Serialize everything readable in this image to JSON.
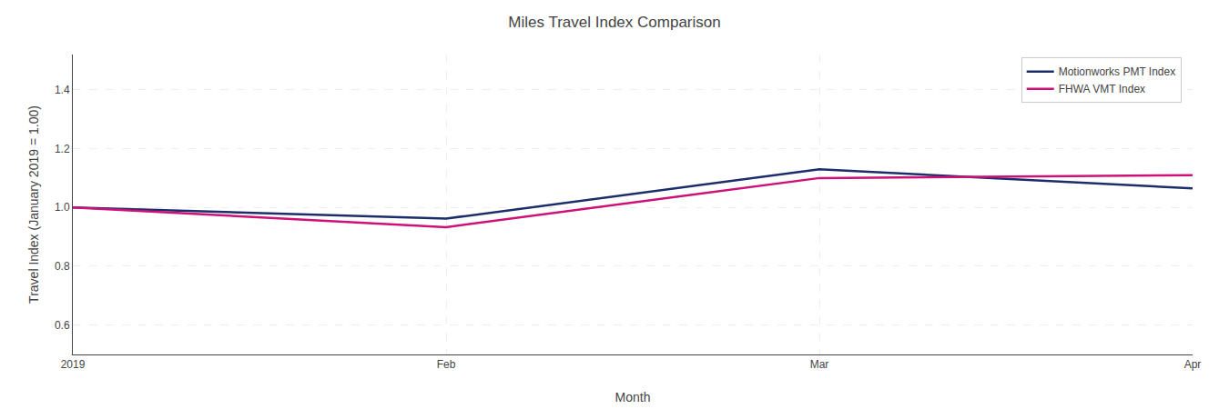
{
  "chart_data": {
    "type": "line",
    "title": "Miles Travel Index Comparison",
    "x_label": "Month",
    "y_label": "Travel Index (January 2019 = 1.00)",
    "categories": [
      "2019",
      "Feb",
      "Mar",
      "Apr"
    ],
    "series": [
      {
        "name": "Motionworks PMT Index",
        "color": "#1c2d6b",
        "values": [
          1.0,
          0.962,
          1.13,
          1.065
        ]
      },
      {
        "name": "FHWA VMT Index",
        "color": "#cc1177",
        "values": [
          1.0,
          0.933,
          1.1,
          1.11
        ]
      }
    ],
    "ylim": [
      0.5,
      1.52
    ],
    "yticks": [
      0.6,
      0.8,
      {
        "value": 1.0,
        "label": "1.0"
      },
      1.2,
      1.4
    ],
    "grid": true,
    "legend": "upper right"
  }
}
